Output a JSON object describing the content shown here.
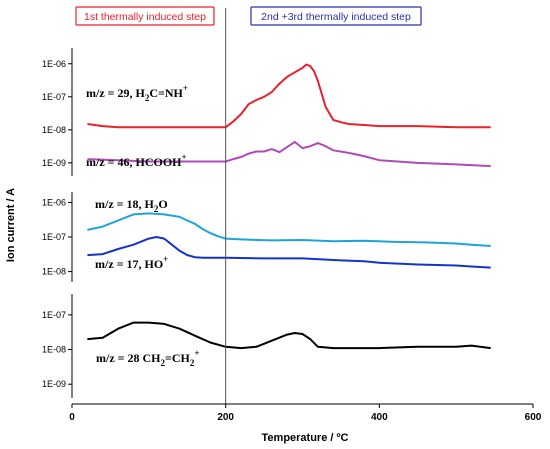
{
  "chart_data": [
    {
      "type": "line",
      "panel": "top",
      "scale": "log",
      "ylim": [
        4e-10,
        3e-06
      ],
      "yticks": [
        "1E-06",
        "1E-07",
        "1E-08",
        "1E-09"
      ],
      "ytick_values": [
        1e-06,
        1e-07,
        1e-08,
        1e-09
      ],
      "series": [
        {
          "color": "#e8212a",
          "x": [
            20,
            40,
            60,
            100,
            150,
            180,
            200,
            210,
            220,
            230,
            240,
            250,
            260,
            270,
            280,
            290,
            300,
            305,
            310,
            315,
            320,
            330,
            340,
            350,
            360,
            380,
            400,
            450,
            500,
            520,
            545
          ],
          "y": [
            1.5e-08,
            1.3e-08,
            1.2e-08,
            1.2e-08,
            1.2e-08,
            1.2e-08,
            1.2e-08,
            1.8e-08,
            3e-08,
            6e-08,
            8e-08,
            1e-07,
            1.4e-07,
            2.5e-07,
            4e-07,
            5.5e-07,
            7.5e-07,
            9.5e-07,
            8.5e-07,
            6e-07,
            3e-07,
            5e-08,
            2e-08,
            1.7e-08,
            1.5e-08,
            1.4e-08,
            1.3e-08,
            1.3e-08,
            1.2e-08,
            1.2e-08,
            1.2e-08
          ]
        },
        {
          "color": "#b04ab8",
          "x": [
            20,
            60,
            100,
            150,
            200,
            210,
            220,
            230,
            240,
            250,
            260,
            270,
            280,
            290,
            300,
            310,
            320,
            330,
            340,
            360,
            380,
            400,
            450,
            500,
            545
          ],
          "y": [
            1.3e-09,
            1.2e-09,
            1.1e-09,
            1.1e-09,
            1.1e-09,
            1.3e-09,
            1.5e-09,
            1.9e-09,
            2.2e-09,
            2.2e-09,
            2.6e-09,
            2.1e-09,
            3e-09,
            4.3e-09,
            2.8e-09,
            3.2e-09,
            4e-09,
            3.2e-09,
            2.4e-09,
            2e-09,
            1.6e-09,
            1.2e-09,
            1e-09,
            9e-10,
            8e-10
          ]
        }
      ],
      "annotations": [
        {
          "parts": [
            {
              "t": "m/z = 29, H"
            },
            {
              "t": "2",
              "sub": true
            },
            {
              "t": "C=NH"
            },
            {
              "t": "+",
              "sup": true
            }
          ]
        },
        {
          "parts": [
            {
              "t": "m/z = 46,  HCOOH"
            },
            {
              "t": "+",
              "sup": true
            }
          ]
        }
      ]
    },
    {
      "type": "line",
      "panel": "middle",
      "scale": "log",
      "ylim": [
        5e-09,
        2e-06
      ],
      "yticks": [
        "1E-06",
        "1E-07",
        "1E-08"
      ],
      "ytick_values": [
        1e-06,
        1e-07,
        1e-08
      ],
      "series": [
        {
          "color": "#1ea3dc",
          "x": [
            20,
            40,
            60,
            80,
            100,
            120,
            140,
            150,
            160,
            170,
            180,
            190,
            200,
            220,
            260,
            300,
            340,
            380,
            420,
            460,
            500,
            520,
            545
          ],
          "y": [
            1.6e-07,
            2e-07,
            3e-07,
            4.5e-07,
            4.8e-07,
            4.5e-07,
            3.8e-07,
            3e-07,
            2.4e-07,
            1.7e-07,
            1.3e-07,
            1.05e-07,
            9e-08,
            8.5e-08,
            8e-08,
            8.2e-08,
            7.5e-08,
            7.8e-08,
            7.2e-08,
            7e-08,
            6.5e-08,
            6e-08,
            5.5e-08
          ]
        },
        {
          "color": "#1533c9",
          "x": [
            20,
            40,
            60,
            80,
            100,
            110,
            120,
            130,
            140,
            150,
            160,
            170,
            180,
            200,
            250,
            300,
            350,
            380,
            400,
            450,
            500,
            520,
            545
          ],
          "y": [
            3e-08,
            3.2e-08,
            4.5e-08,
            6e-08,
            9e-08,
            1e-07,
            9e-08,
            6e-08,
            4e-08,
            3e-08,
            2.6e-08,
            2.5e-08,
            2.5e-08,
            2.5e-08,
            2.4e-08,
            2.4e-08,
            2.1e-08,
            2e-08,
            1.8e-08,
            1.6e-08,
            1.5e-08,
            1.4e-08,
            1.3e-08
          ]
        }
      ],
      "annotations": [
        {
          "parts": [
            {
              "t": "m/z = 18,  H"
            },
            {
              "t": "2",
              "sub": true
            },
            {
              "t": "O"
            }
          ]
        },
        {
          "parts": [
            {
              "t": "m/z = 17,   HO"
            },
            {
              "t": "+",
              "sup": true
            }
          ]
        }
      ]
    },
    {
      "type": "line",
      "panel": "bottom",
      "scale": "log",
      "ylim": [
        4e-10,
        4e-07
      ],
      "yticks": [
        "1E-07",
        "1E-08",
        "1E-09"
      ],
      "ytick_values": [
        1e-07,
        1e-08,
        1e-09
      ],
      "series": [
        {
          "color": "#000000",
          "x": [
            20,
            40,
            60,
            80,
            100,
            120,
            140,
            160,
            180,
            200,
            220,
            240,
            260,
            280,
            290,
            300,
            310,
            320,
            340,
            360,
            400,
            450,
            500,
            520,
            545
          ],
          "y": [
            2e-08,
            2.2e-08,
            4e-08,
            6e-08,
            6e-08,
            5.5e-08,
            4e-08,
            2.5e-08,
            1.6e-08,
            1.2e-08,
            1.1e-08,
            1.2e-08,
            1.8e-08,
            2.7e-08,
            3e-08,
            2.8e-08,
            2e-08,
            1.2e-08,
            1.1e-08,
            1.1e-08,
            1.1e-08,
            1.2e-08,
            1.2e-08,
            1.3e-08,
            1.1e-08
          ]
        }
      ],
      "annotations": [
        {
          "parts": [
            {
              "t": "m/z = 28  CH"
            },
            {
              "t": "2",
              "sub": true
            },
            {
              "t": "=CH"
            },
            {
              "t": "2",
              "sub": true
            },
            {
              "t": "+",
              "sup": true
            }
          ]
        }
      ]
    }
  ],
  "x_axis": {
    "xlabel": "Temperature / ºC",
    "xlim": [
      0,
      600
    ],
    "ticks": [
      0,
      200,
      400,
      600
    ],
    "tick_labels": [
      "0",
      "200",
      "400",
      "600"
    ]
  },
  "ylabel": "Ion current / A",
  "marker_line_x": 200,
  "step_labels": [
    {
      "text": "1st thermally induced step",
      "color": "#e8212a"
    },
    {
      "text": "2nd +3rd thermally induced step",
      "color": "#2a2fb0"
    }
  ]
}
